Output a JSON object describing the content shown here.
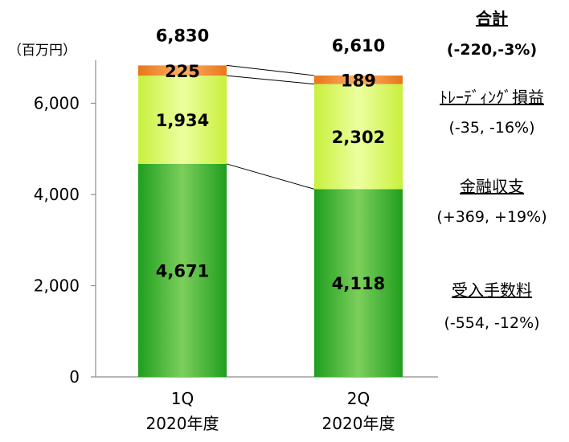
{
  "chart_data": {
    "type": "bar",
    "stacked": true,
    "unit_label": "（百万円）",
    "categories": [
      {
        "line1": "1Q",
        "line2": "2020年度"
      },
      {
        "line1": "2Q",
        "line2": "2020年度"
      }
    ],
    "totals": [
      "6,830",
      "6,610"
    ],
    "ylim": [
      0,
      7000
    ],
    "yticks": [
      {
        "value": 0,
        "label": "0"
      },
      {
        "value": 2000,
        "label": "2,000"
      },
      {
        "value": 4000,
        "label": "4,000"
      },
      {
        "value": 6000,
        "label": "6,000"
      }
    ],
    "series": [
      {
        "name": "受入手数料",
        "change": "(-554, -12%)",
        "values": [
          4671,
          4118
        ],
        "labels": [
          "4,671",
          "4,118"
        ],
        "color": "#1f9e1f",
        "highlight": "#7ccf5c"
      },
      {
        "name": "金融収支",
        "change": "(+369, +19%)",
        "values": [
          1934,
          2302
        ],
        "labels": [
          "1,934",
          "2,302"
        ],
        "color": "#c8f03c",
        "highlight": "#ecffa0"
      },
      {
        "name": "ﾄﾚｰﾃﾞｨﾝｸﾞ損益",
        "change": "(-35, -16%)",
        "values": [
          225,
          189
        ],
        "labels": [
          "225",
          "189"
        ],
        "color": "#e8761a",
        "highlight": "#ffb066"
      }
    ],
    "total_legend": {
      "name": "合計",
      "change": "(-220,-3%)"
    },
    "grid": false
  }
}
